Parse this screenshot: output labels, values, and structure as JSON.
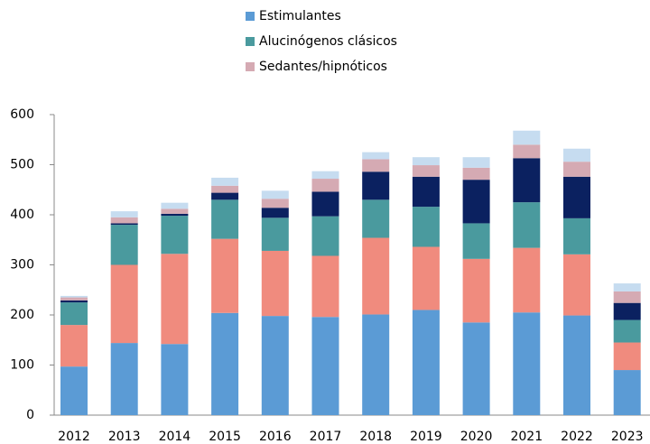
{
  "chart_data": {
    "type": "stacked_bar",
    "categories": [
      "2012",
      "2013",
      "2014",
      "2015",
      "2016",
      "2017",
      "2018",
      "2019",
      "2020",
      "2021",
      "2022",
      "2023"
    ],
    "series": [
      {
        "name": "Estimulantes",
        "color": "#5b9bd5",
        "values": [
          97,
          144,
          142,
          204,
          198,
          196,
          201,
          210,
          185,
          205,
          199,
          90
        ]
      },
      {
        "color": "#f08b7e",
        "values": [
          83,
          156,
          180,
          148,
          130,
          122,
          153,
          126,
          127,
          129,
          122,
          55
        ]
      },
      {
        "name": "Alucinógenos clásicos",
        "color": "#4a9a9e",
        "values": [
          45,
          80,
          76,
          78,
          66,
          79,
          76,
          80,
          71,
          91,
          72,
          45
        ]
      },
      {
        "color": "#0b2160",
        "values": [
          4,
          3,
          4,
          14,
          20,
          49,
          56,
          60,
          87,
          88,
          83,
          34
        ]
      },
      {
        "name": "Sedantes/hipnóticos",
        "color": "#d5aab3",
        "values": [
          6,
          12,
          10,
          14,
          18,
          26,
          25,
          23,
          24,
          27,
          30,
          23
        ]
      },
      {
        "color": "#c6dcf0",
        "values": [
          3,
          12,
          12,
          16,
          16,
          15,
          14,
          16,
          21,
          28,
          26,
          16
        ]
      }
    ],
    "ylim": [
      0,
      600
    ],
    "yticks": [
      0,
      100,
      200,
      300,
      400,
      500,
      600
    ],
    "grid": false
  }
}
